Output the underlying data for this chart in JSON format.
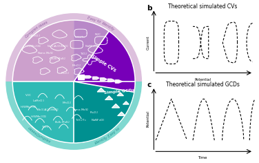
{
  "fig_width": 3.76,
  "fig_height": 2.36,
  "panel_b_title": "Theoretical simulated CVs",
  "panel_c_title": "Theoretical simulated GCDs",
  "panel_b_xlabel": "Potential",
  "panel_b_ylabel": "Current",
  "panel_c_xlabel": "Time",
  "panel_c_ylabel": "Potential",
  "title_fontsize": 5.5,
  "axis_label_fontsize": 4.0,
  "pie_purple_light": "#c8a0c8",
  "pie_purple_dark": "#7700bb",
  "pie_teal_light": "#30bab5",
  "pie_teal_dark": "#009090",
  "outer_ring_purple": "#c090c0",
  "outer_ring_teal": "#40b8b0",
  "divider_color": "white",
  "icon_color": "white"
}
